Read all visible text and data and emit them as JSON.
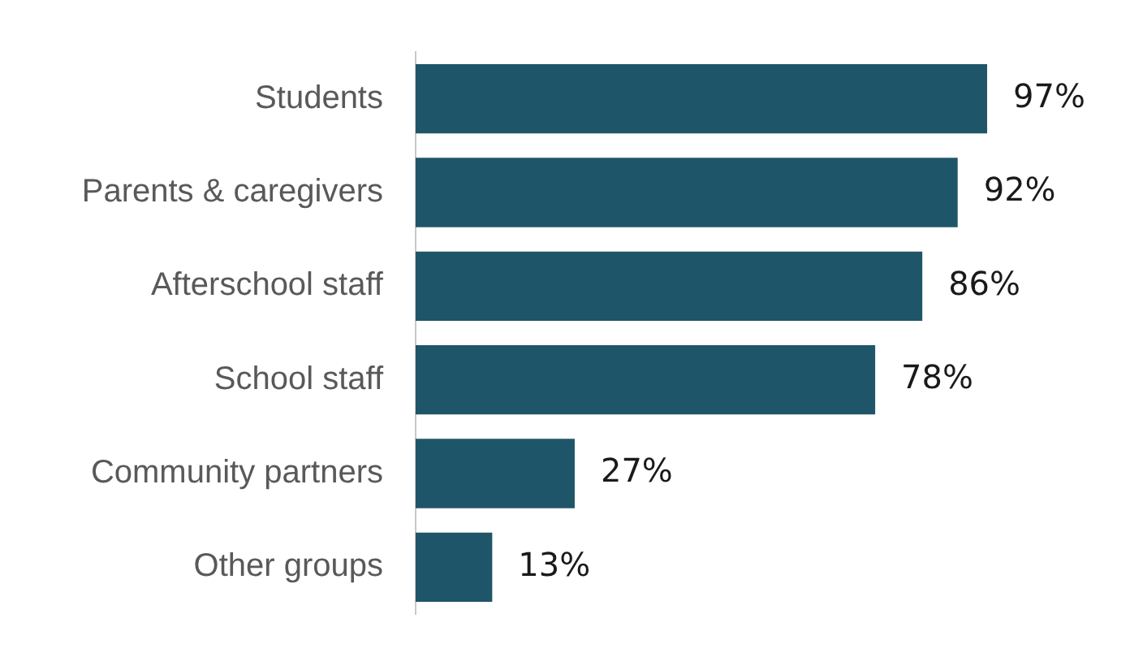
{
  "chart_data": {
    "type": "bar",
    "orientation": "horizontal",
    "categories": [
      "Students",
      "Parents & caregivers",
      "Afterschool staff",
      "School staff",
      "Community partners",
      "Other groups"
    ],
    "values": [
      97,
      92,
      86,
      78,
      27,
      13
    ],
    "value_labels": [
      "97%",
      "92%",
      "86%",
      "78%",
      "27%",
      "13%"
    ],
    "color": "#1f5568",
    "legend": false
  }
}
